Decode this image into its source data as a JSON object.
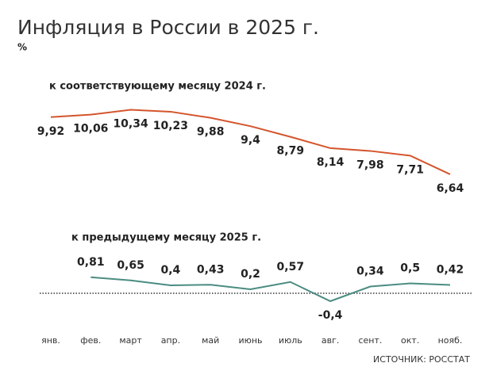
{
  "source": "ИСТОЧНИК: РОССТАТ",
  "chart_data": [
    {
      "type": "line",
      "title": "Инфляция в России в 2025 г.",
      "y_label": "%",
      "categories": [
        "янв.",
        "фев.",
        "март",
        "апр.",
        "май",
        "июнь",
        "июль",
        "авг.",
        "сент.",
        "окт.",
        "нояб."
      ],
      "series": [
        {
          "name": "к соответствующему месяцу 2024 г.",
          "color": "#d4552c",
          "values": [
            9.92,
            10.06,
            10.34,
            10.23,
            9.88,
            9.4,
            8.79,
            8.14,
            7.98,
            7.71,
            6.64
          ],
          "value_labels": [
            "9,92",
            "10,06",
            "10,34",
            "10,23",
            "9,88",
            "9,4",
            "8,79",
            "8,14",
            "7,98",
            "7,71",
            "6,64"
          ]
        }
      ]
    },
    {
      "type": "line",
      "series": [
        {
          "name": "к предыдущему месяцу 2025 г.",
          "color": "#4a8c82",
          "values": [
            null,
            0.81,
            0.65,
            0.4,
            0.43,
            0.2,
            0.57,
            -0.4,
            0.34,
            0.5,
            0.42
          ],
          "value_labels": [
            null,
            "0,81",
            "0,65",
            "0,4",
            "0,43",
            "0,2",
            "0,57",
            "-0,4",
            "0,34",
            "0,5",
            "0,42"
          ]
        }
      ]
    }
  ]
}
